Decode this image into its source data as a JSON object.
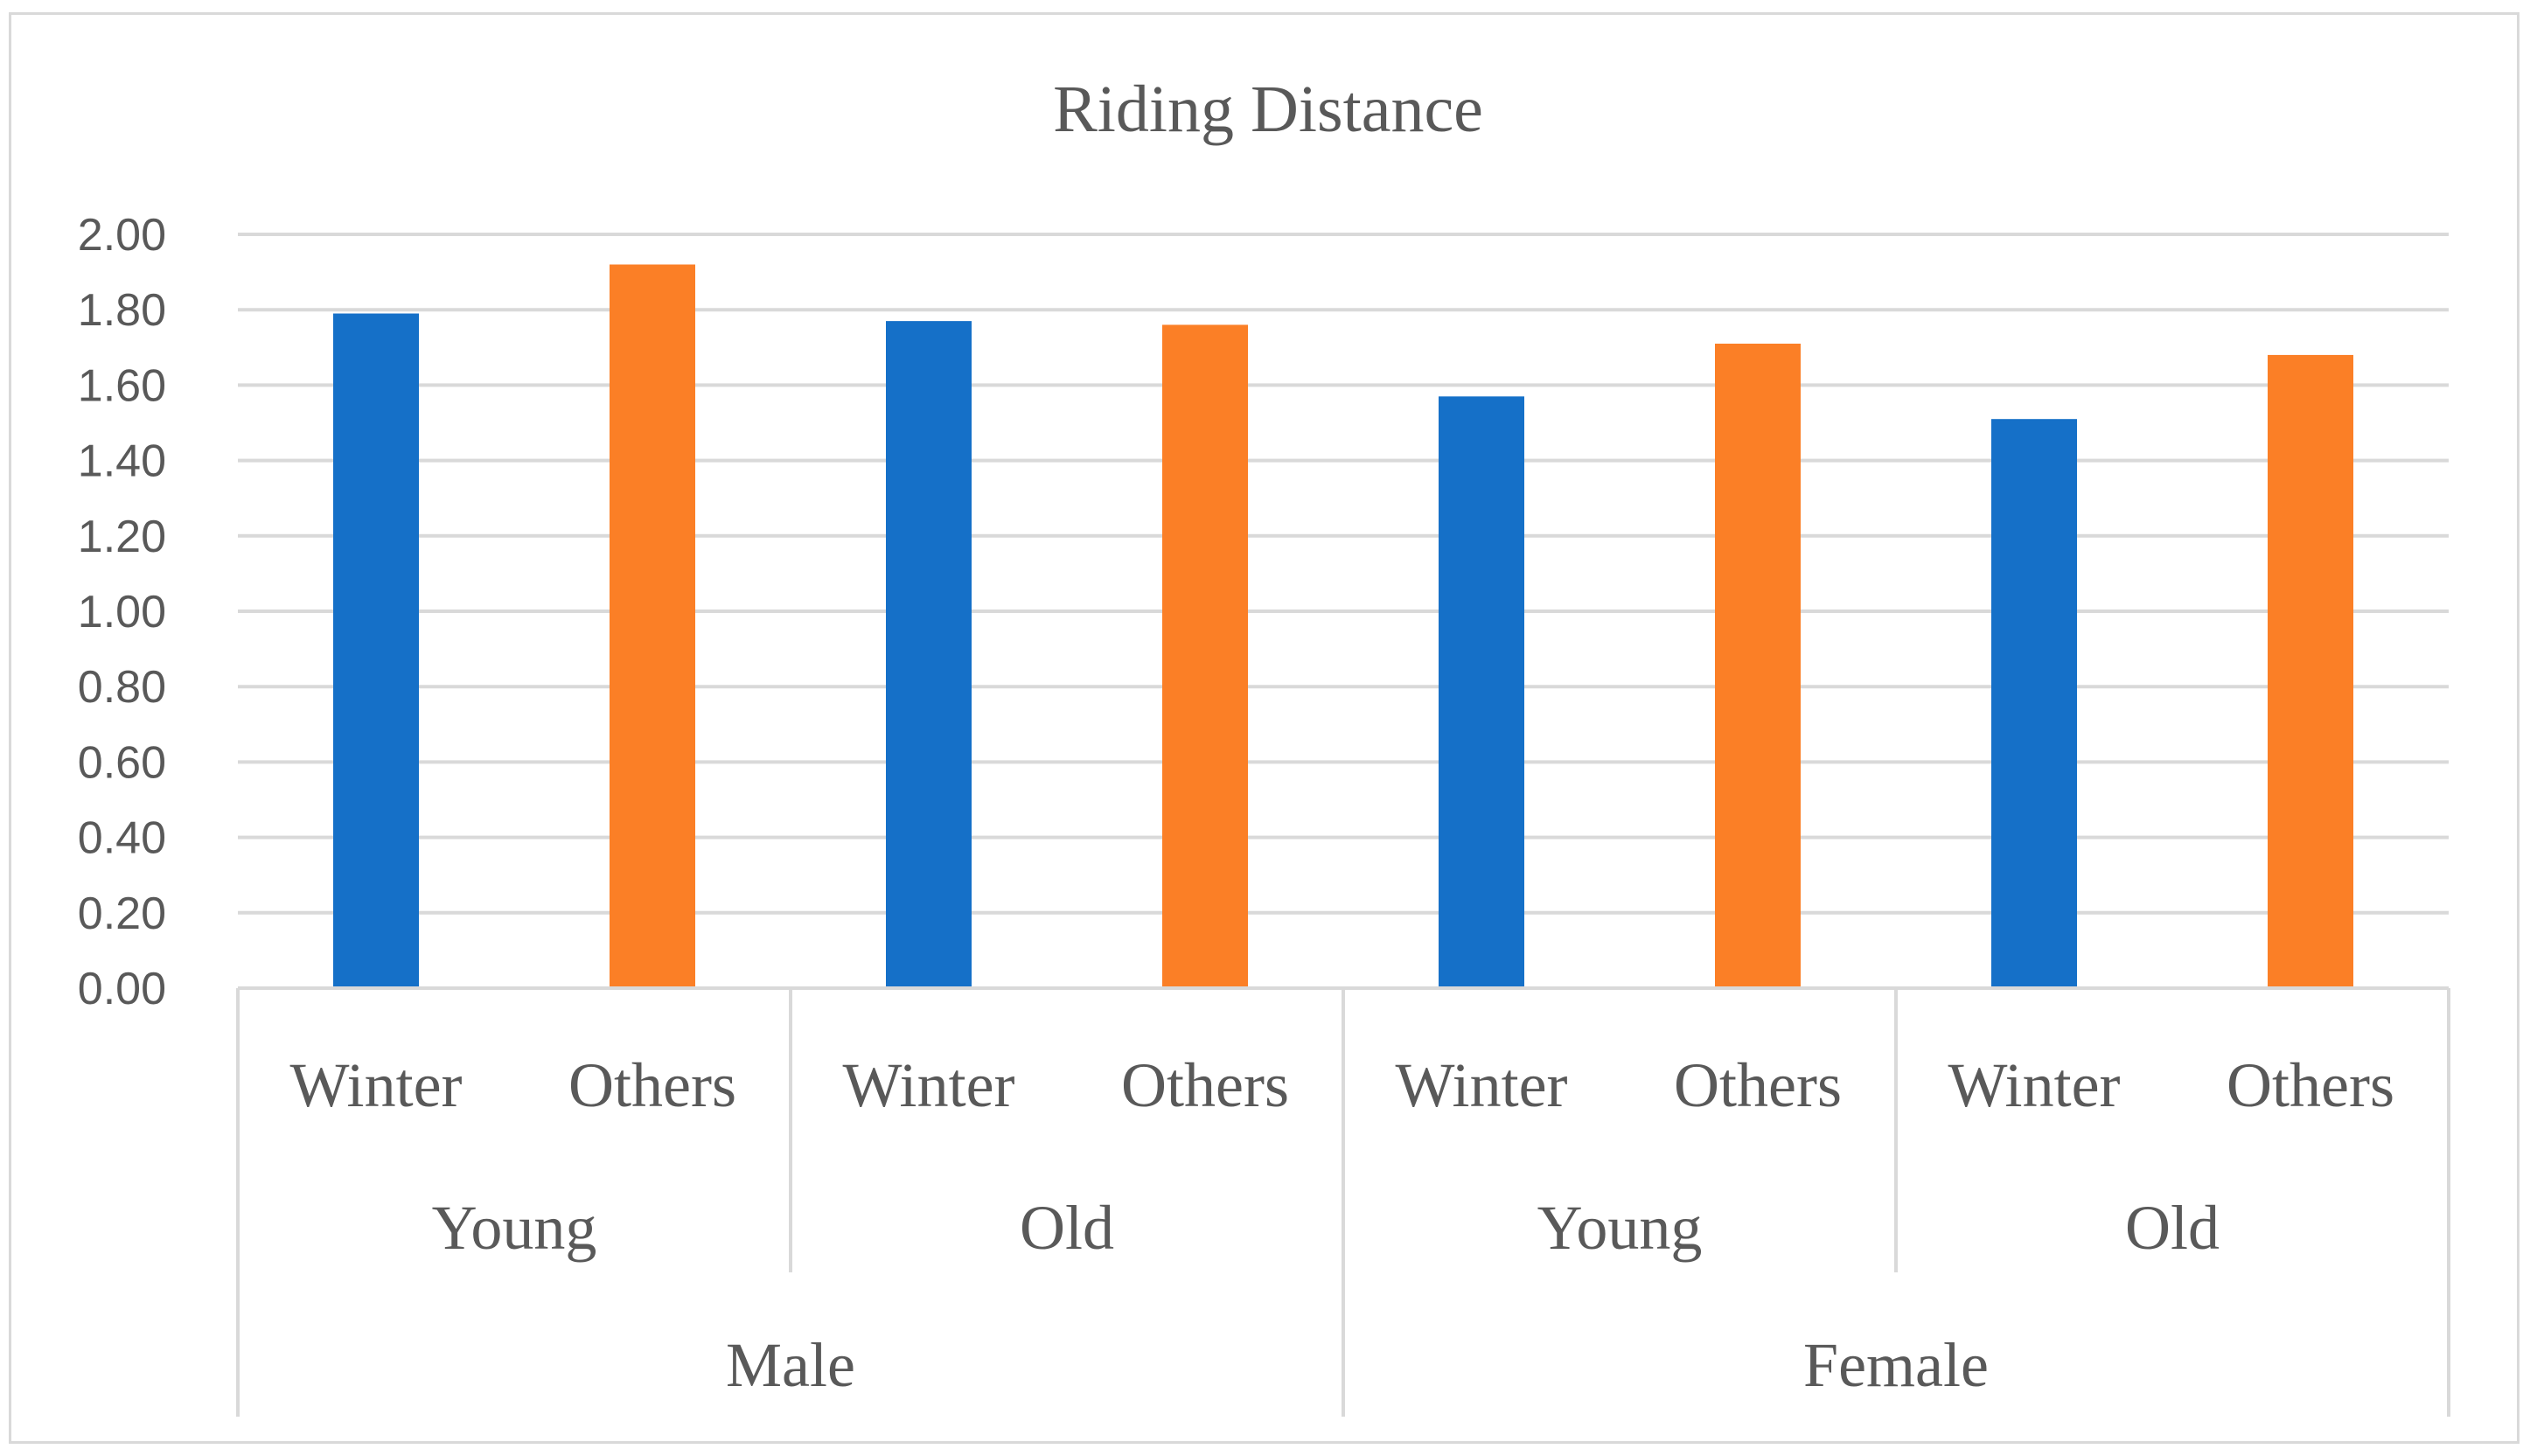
{
  "chart_data": {
    "type": "bar",
    "title": "Riding Distance",
    "xlabel": "",
    "ylabel": "",
    "ylim": [
      0,
      2
    ],
    "yticks": [
      "0.00",
      "0.20",
      "0.40",
      "0.60",
      "0.80",
      "1.00",
      "1.20",
      "1.40",
      "1.60",
      "1.80",
      "2.00"
    ],
    "grid": true,
    "legend": "none",
    "category_levels": {
      "level1": [
        "Winter",
        "Others",
        "Winter",
        "Others",
        "Winter",
        "Others",
        "Winter",
        "Others"
      ],
      "level2": [
        "Young",
        "Old",
        "Young",
        "Old"
      ],
      "level3": [
        "Male",
        "Female"
      ]
    },
    "values": [
      1.79,
      1.92,
      1.77,
      1.76,
      1.57,
      1.71,
      1.51,
      1.68
    ],
    "colors": {
      "Winter": "#1570c8",
      "Others": "#fb7f26",
      "grid": "#d9d9d9",
      "text": "#595959"
    }
  }
}
